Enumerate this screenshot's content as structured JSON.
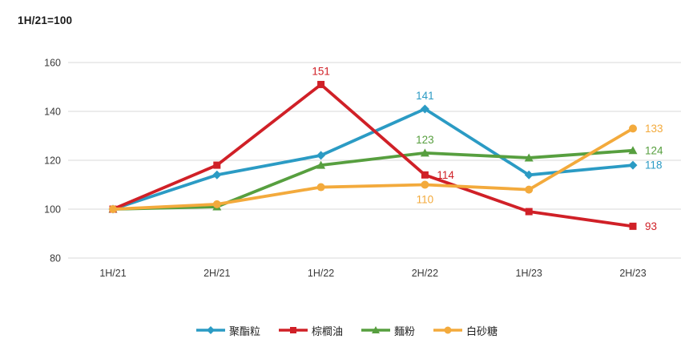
{
  "chart": {
    "note": "1H/21=100"
  },
  "chart_data": {
    "type": "line",
    "title": "",
    "xlabel": "",
    "ylabel": "",
    "axis_note": "1H/21=100",
    "categories": [
      "1H/21",
      "2H/21",
      "1H/22",
      "2H/22",
      "1H/23",
      "2H/23"
    ],
    "series": [
      {
        "key": "polyester-chips",
        "name": "聚酯粒",
        "color": "#2B9BC4",
        "marker": "diamond",
        "values": [
          100,
          114,
          122,
          141,
          114,
          118
        ]
      },
      {
        "key": "palm-oil",
        "name": "棕櫚油",
        "color": "#D02027",
        "marker": "square",
        "values": [
          100,
          118,
          151,
          114,
          99,
          93
        ]
      },
      {
        "key": "flour",
        "name": "麵粉",
        "color": "#579F3F",
        "marker": "triangle",
        "values": [
          100,
          101,
          118,
          123,
          121,
          124
        ]
      },
      {
        "key": "white-sugar",
        "name": "白砂糖",
        "color": "#F3AA3C",
        "marker": "circle",
        "values": [
          100,
          102,
          109,
          110,
          108,
          133
        ]
      }
    ],
    "ylim": [
      80,
      160
    ],
    "yticks": [
      80,
      100,
      120,
      140,
      160
    ],
    "grid": "horizontal",
    "gridline_color": "#D9D9D9",
    "tick_color": "#3a3a3a",
    "legend_position": "bottom",
    "point_labels": [
      {
        "series": 1,
        "index": 2,
        "text": "151",
        "position": "above"
      },
      {
        "series": 0,
        "index": 3,
        "text": "141",
        "position": "above"
      },
      {
        "series": 2,
        "index": 3,
        "text": "123",
        "position": "above"
      },
      {
        "series": 1,
        "index": 3,
        "text": "114",
        "position": "right"
      },
      {
        "series": 3,
        "index": 3,
        "text": "110",
        "position": "below"
      },
      {
        "series": 3,
        "index": 5,
        "text": "133",
        "position": "right"
      },
      {
        "series": 2,
        "index": 5,
        "text": "124",
        "position": "right"
      },
      {
        "series": 0,
        "index": 5,
        "text": "118",
        "position": "right"
      },
      {
        "series": 1,
        "index": 5,
        "text": "93",
        "position": "right"
      }
    ]
  }
}
